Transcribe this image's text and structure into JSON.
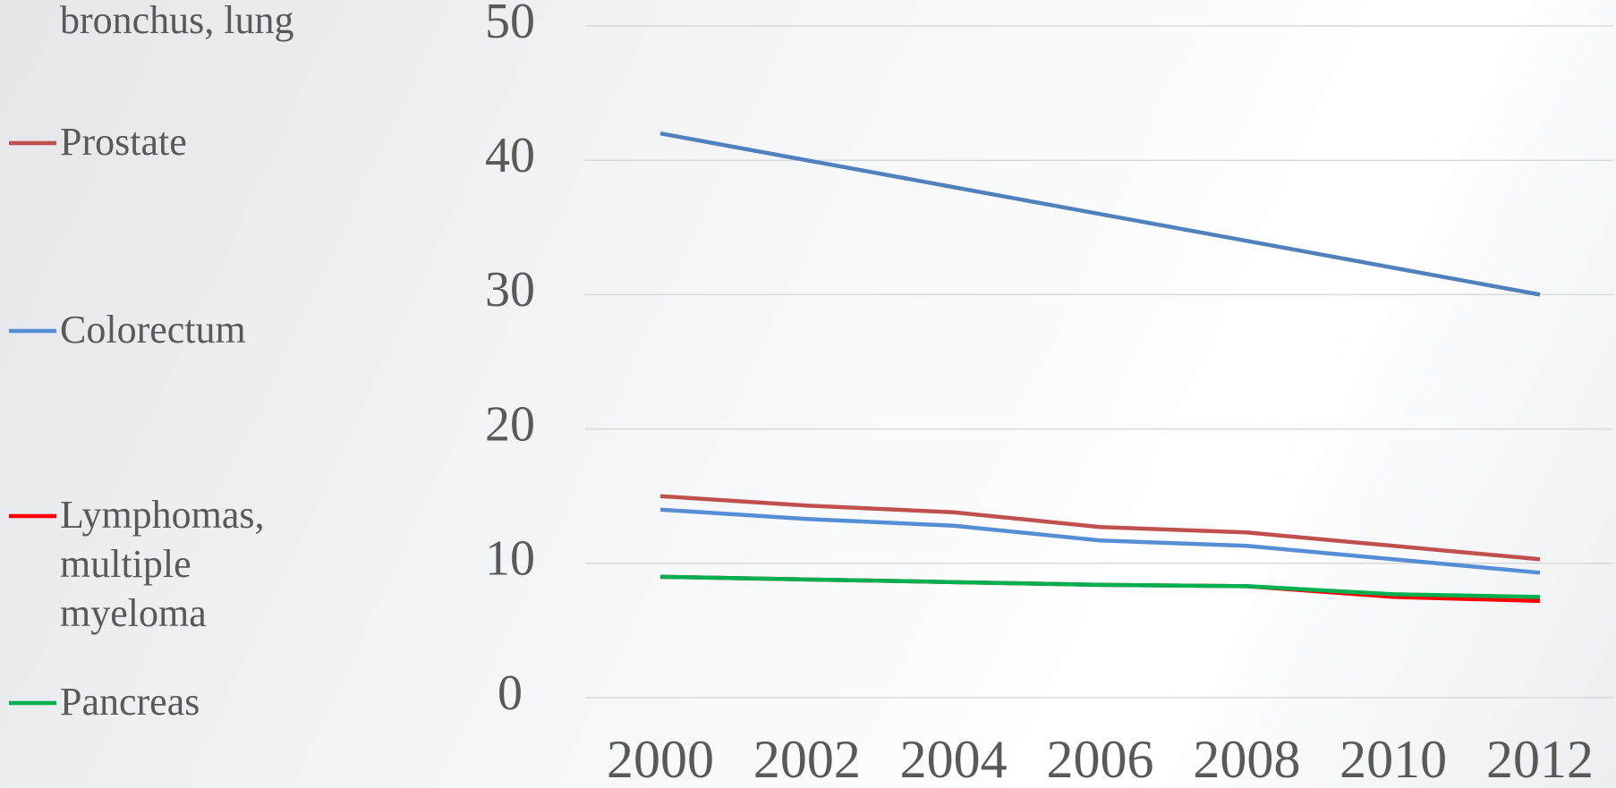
{
  "chart_data": {
    "type": "line",
    "categories": [
      "2000",
      "2002",
      "2004",
      "2006",
      "2008",
      "2010",
      "2012"
    ],
    "ylim": [
      0,
      50
    ],
    "yticks": [
      0,
      10,
      20,
      30,
      40,
      50
    ],
    "grid": true,
    "legend": "left",
    "series": [
      {
        "name": "bronchus, lung",
        "color": "#4f81bd",
        "values": [
          42,
          40,
          38,
          36,
          34,
          32,
          30
        ]
      },
      {
        "name": "Prostate",
        "color": "#c0504d",
        "values": [
          15,
          14.3,
          13.8,
          12.7,
          12.3,
          11.3,
          10.3
        ]
      },
      {
        "name": "Colorectum",
        "color": "#558ed5",
        "values": [
          14,
          13.3,
          12.8,
          11.7,
          11.3,
          10.3,
          9.3
        ]
      },
      {
        "name": "Lymphomas, multiple myeloma",
        "color": "#ff0000",
        "values": [
          9,
          8.8,
          8.6,
          8.4,
          8.3,
          7.5,
          7.2
        ]
      },
      {
        "name": "Pancreas",
        "color": "#00b050",
        "values": [
          9,
          8.8,
          8.6,
          8.4,
          8.3,
          7.7,
          7.5
        ]
      }
    ]
  }
}
